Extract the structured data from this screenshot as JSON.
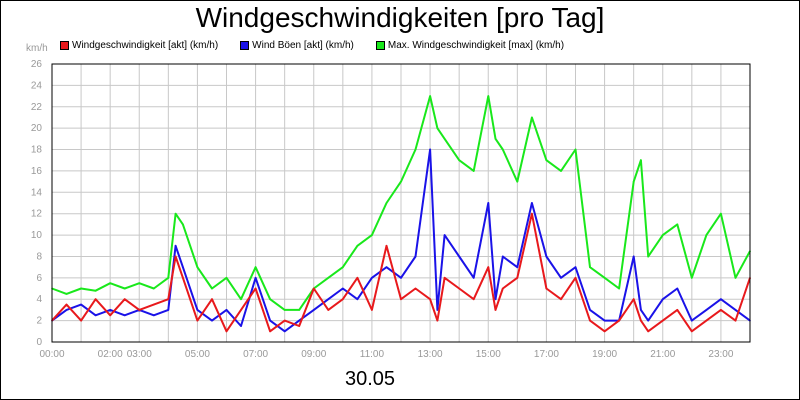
{
  "title": "Windgeschwindigkeiten [pro Tag]",
  "date_label": "30.05",
  "unit_label": "km/h",
  "legend": [
    {
      "label": "Windgeschwindigkeit [akt] (km/h)",
      "color": "#e8191c",
      "icon": "red-square-icon"
    },
    {
      "label": "Wind Böen [akt] (km/h)",
      "color": "#1a12e8",
      "icon": "blue-square-icon"
    },
    {
      "label": "Max. Windgeschwindigkeit [max] (km/h)",
      "color": "#19e81b",
      "icon": "green-square-icon"
    }
  ],
  "chart_data": {
    "type": "line",
    "title": "Windgeschwindigkeiten [pro Tag]",
    "xlabel": "30.05",
    "ylabel": "km/h",
    "ylim": [
      0,
      26
    ],
    "xlim": [
      "00:00",
      "24:00"
    ],
    "y_ticks": [
      "0",
      "2",
      "4",
      "6",
      "8",
      "10",
      "12",
      "14",
      "16",
      "18",
      "20",
      "22",
      "24",
      "26"
    ],
    "x_ticks": [
      "00:00",
      "02:00",
      "03:00",
      "05:00",
      "07:00",
      "09:00",
      "11:00",
      "13:00",
      "15:00",
      "17:00",
      "19:00",
      "21:00",
      "23:00"
    ],
    "grid": true,
    "legend_position": "top",
    "series": [
      {
        "name": "Max. Windgeschwindigkeit [max] (km/h)",
        "color": "#19e81b",
        "x": [
          "00:00",
          "00:30",
          "01:00",
          "01:30",
          "02:00",
          "02:30",
          "03:00",
          "03:30",
          "04:00",
          "04:15",
          "04:30",
          "05:00",
          "05:30",
          "06:00",
          "06:30",
          "07:00",
          "07:30",
          "08:00",
          "08:30",
          "09:00",
          "09:30",
          "10:00",
          "10:30",
          "11:00",
          "11:30",
          "12:00",
          "12:30",
          "13:00",
          "13:15",
          "13:30",
          "14:00",
          "14:30",
          "15:00",
          "15:15",
          "15:30",
          "16:00",
          "16:30",
          "17:00",
          "17:30",
          "18:00",
          "18:30",
          "19:00",
          "19:30",
          "20:00",
          "20:15",
          "20:30",
          "21:00",
          "21:30",
          "22:00",
          "22:30",
          "23:00",
          "23:30",
          "24:00"
        ],
        "values": [
          5,
          4.5,
          5,
          4.8,
          5.5,
          5,
          5.5,
          5,
          6,
          12,
          11,
          7,
          5,
          6,
          4,
          7,
          4,
          3,
          3,
          5,
          6,
          7,
          9,
          10,
          13,
          15,
          18,
          23,
          20,
          19,
          17,
          16,
          23,
          19,
          18,
          15,
          21,
          17,
          16,
          18,
          7,
          6,
          5,
          15,
          17,
          8,
          10,
          11,
          6,
          10,
          12,
          6,
          8.5
        ]
      },
      {
        "name": "Wind Böen [akt] (km/h)",
        "color": "#1a12e8",
        "x": [
          "00:00",
          "00:30",
          "01:00",
          "01:30",
          "02:00",
          "02:30",
          "03:00",
          "03:30",
          "04:00",
          "04:15",
          "04:30",
          "05:00",
          "05:30",
          "06:00",
          "06:30",
          "07:00",
          "07:30",
          "08:00",
          "08:30",
          "09:00",
          "09:30",
          "10:00",
          "10:30",
          "11:00",
          "11:30",
          "12:00",
          "12:30",
          "13:00",
          "13:15",
          "13:30",
          "14:00",
          "14:30",
          "15:00",
          "15:15",
          "15:30",
          "16:00",
          "16:30",
          "17:00",
          "17:30",
          "18:00",
          "18:30",
          "19:00",
          "19:30",
          "20:00",
          "20:15",
          "20:30",
          "21:00",
          "21:30",
          "22:00",
          "22:30",
          "23:00",
          "23:30",
          "24:00"
        ],
        "values": [
          2,
          3,
          3.5,
          2.5,
          3,
          2.5,
          3,
          2.5,
          3,
          9,
          7,
          3,
          2,
          3,
          1.5,
          6,
          2,
          1,
          2,
          3,
          4,
          5,
          4,
          6,
          7,
          6,
          8,
          18,
          3,
          10,
          8,
          6,
          13,
          4,
          8,
          7,
          13,
          8,
          6,
          7,
          3,
          2,
          2,
          8,
          3,
          2,
          4,
          5,
          2,
          3,
          4,
          3,
          2
        ]
      },
      {
        "name": "Windgeschwindigkeit [akt] (km/h)",
        "color": "#e8191c",
        "x": [
          "00:00",
          "00:30",
          "01:00",
          "01:30",
          "02:00",
          "02:30",
          "03:00",
          "03:30",
          "04:00",
          "04:15",
          "04:30",
          "05:00",
          "05:30",
          "06:00",
          "06:30",
          "07:00",
          "07:30",
          "08:00",
          "08:30",
          "09:00",
          "09:30",
          "10:00",
          "10:30",
          "11:00",
          "11:30",
          "12:00",
          "12:30",
          "13:00",
          "13:15",
          "13:30",
          "14:00",
          "14:30",
          "15:00",
          "15:15",
          "15:30",
          "16:00",
          "16:30",
          "17:00",
          "17:30",
          "18:00",
          "18:30",
          "19:00",
          "19:30",
          "20:00",
          "20:15",
          "20:30",
          "21:00",
          "21:30",
          "22:00",
          "22:30",
          "23:00",
          "23:30",
          "24:00"
        ],
        "values": [
          2,
          3.5,
          2,
          4,
          2.5,
          4,
          3,
          3.5,
          4,
          8,
          6,
          2,
          4,
          1,
          3,
          5,
          1,
          2,
          1.5,
          5,
          3,
          4,
          6,
          3,
          9,
          4,
          5,
          4,
          2,
          6,
          5,
          4,
          7,
          3,
          5,
          6,
          12,
          5,
          4,
          6,
          2,
          1,
          2,
          4,
          2,
          1,
          2,
          3,
          1,
          2,
          3,
          2,
          6
        ]
      }
    ]
  }
}
